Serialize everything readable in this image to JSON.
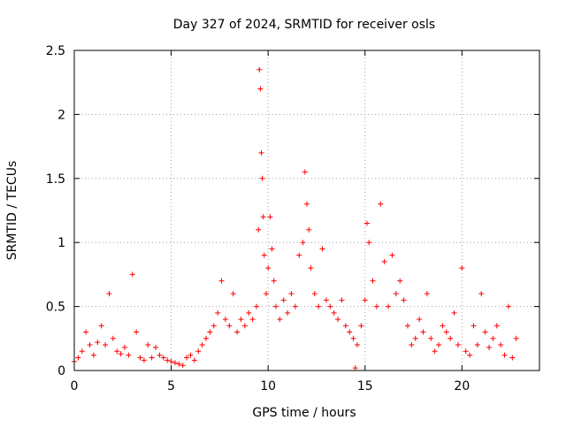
{
  "chart_data": {
    "type": "scatter",
    "title": "Day 327 of 2024, SRMTID for receiver osls",
    "xlabel": "GPS time / hours",
    "ylabel": "SRMTID / TECUs",
    "xlim": [
      0,
      24
    ],
    "ylim": [
      0,
      2.5
    ],
    "xticks": [
      0,
      5,
      10,
      15,
      20
    ],
    "xtick_labels": [
      "0",
      "5",
      "10",
      "15",
      "20"
    ],
    "yticks": [
      0,
      0.5,
      1,
      1.5,
      2,
      2.5
    ],
    "ytick_labels": [
      "0",
      "0.5",
      "1",
      "1.5",
      "2",
      "2.5"
    ],
    "grid": true,
    "marker": "plus",
    "series": [
      {
        "name": "SRMTID",
        "color": "#ff0000",
        "x": [
          0.0,
          0.2,
          0.4,
          0.6,
          0.8,
          1.0,
          1.2,
          1.4,
          1.6,
          1.8,
          2.0,
          2.2,
          2.4,
          2.6,
          2.8,
          3.0,
          3.2,
          3.4,
          3.6,
          3.8,
          4.0,
          4.2,
          4.4,
          4.6,
          4.8,
          5.0,
          5.2,
          5.4,
          5.6,
          5.8,
          6.0,
          6.2,
          6.4,
          6.6,
          6.8,
          7.0,
          7.2,
          7.4,
          7.6,
          7.8,
          8.0,
          8.2,
          8.4,
          8.6,
          8.8,
          9.0,
          9.2,
          9.4,
          9.5,
          9.55,
          9.6,
          9.65,
          9.7,
          9.75,
          9.8,
          9.9,
          10.0,
          10.1,
          10.2,
          10.3,
          10.4,
          10.6,
          10.8,
          11.0,
          11.2,
          11.4,
          11.6,
          11.8,
          11.9,
          12.0,
          12.1,
          12.2,
          12.4,
          12.6,
          12.8,
          13.0,
          13.2,
          13.4,
          13.6,
          13.8,
          14.0,
          14.2,
          14.4,
          14.5,
          14.6,
          14.8,
          15.0,
          15.1,
          15.2,
          15.4,
          15.6,
          15.8,
          16.0,
          16.2,
          16.4,
          16.6,
          16.8,
          17.0,
          17.2,
          17.4,
          17.6,
          17.8,
          18.0,
          18.2,
          18.4,
          18.6,
          18.8,
          19.0,
          19.2,
          19.4,
          19.6,
          19.8,
          20.0,
          20.2,
          20.4,
          20.6,
          20.8,
          21.0,
          21.2,
          21.4,
          21.6,
          21.8,
          22.0,
          22.2,
          22.4,
          22.6,
          22.8
        ],
        "y": [
          0.07,
          0.1,
          0.15,
          0.3,
          0.2,
          0.12,
          0.22,
          0.35,
          0.2,
          0.6,
          0.25,
          0.15,
          0.13,
          0.18,
          0.12,
          0.75,
          0.3,
          0.1,
          0.08,
          0.2,
          0.1,
          0.18,
          0.12,
          0.1,
          0.08,
          0.07,
          0.06,
          0.05,
          0.04,
          0.1,
          0.12,
          0.08,
          0.15,
          0.2,
          0.25,
          0.3,
          0.35,
          0.45,
          0.7,
          0.4,
          0.35,
          0.6,
          0.3,
          0.4,
          0.35,
          0.45,
          0.4,
          0.5,
          1.1,
          2.35,
          2.2,
          1.7,
          1.5,
          1.2,
          0.9,
          0.6,
          0.8,
          1.2,
          0.95,
          0.7,
          0.5,
          0.4,
          0.55,
          0.45,
          0.6,
          0.5,
          0.9,
          1.0,
          1.55,
          1.3,
          1.1,
          0.8,
          0.6,
          0.5,
          0.95,
          0.55,
          0.5,
          0.45,
          0.4,
          0.55,
          0.35,
          0.3,
          0.25,
          0.02,
          0.2,
          0.35,
          0.55,
          1.15,
          1.0,
          0.7,
          0.5,
          1.3,
          0.85,
          0.5,
          0.9,
          0.6,
          0.7,
          0.55,
          0.35,
          0.2,
          0.25,
          0.4,
          0.3,
          0.6,
          0.25,
          0.15,
          0.2,
          0.35,
          0.3,
          0.25,
          0.45,
          0.2,
          0.8,
          0.15,
          0.12,
          0.35,
          0.2,
          0.6,
          0.3,
          0.18,
          0.25,
          0.35,
          0.2,
          0.12,
          0.5,
          0.1,
          0.25
        ]
      }
    ]
  }
}
